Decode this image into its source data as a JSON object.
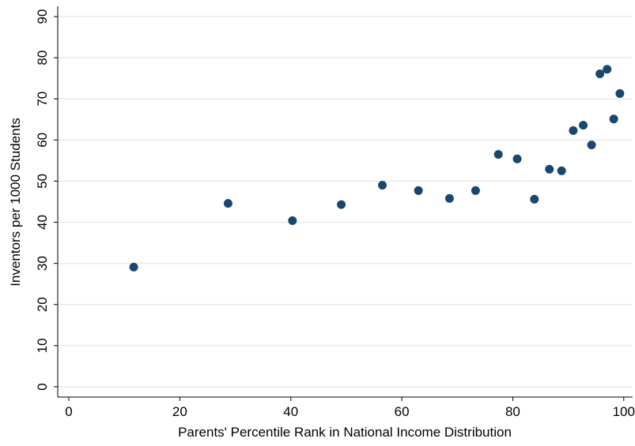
{
  "chart_data": {
    "type": "scatter",
    "x_label": "Parents' Percentile Rank in National Income Distribution",
    "y_label": "Inventors per 1000 Students",
    "x": [
      11.7,
      28.7,
      40.3,
      49.1,
      56.5,
      63.0,
      68.6,
      73.3,
      77.4,
      80.8,
      83.9,
      86.6,
      88.8,
      90.9,
      92.7,
      94.2,
      95.7,
      97.0,
      98.2,
      99.3
    ],
    "values": [
      29.1,
      44.6,
      40.4,
      44.3,
      49.0,
      47.7,
      45.8,
      47.7,
      56.5,
      55.4,
      45.6,
      52.9,
      52.5,
      62.3,
      63.6,
      58.8,
      76.1,
      77.2,
      65.1,
      71.3
    ],
    "color": "#1a476f",
    "xlim": [
      -2,
      101.6
    ],
    "ylim": [
      -2.5,
      92.5
    ],
    "xticks": [
      0,
      20,
      40,
      60,
      80,
      100
    ],
    "yticks": [
      0,
      10,
      20,
      30,
      40,
      50,
      60,
      70,
      80,
      90
    ],
    "grid": true
  }
}
